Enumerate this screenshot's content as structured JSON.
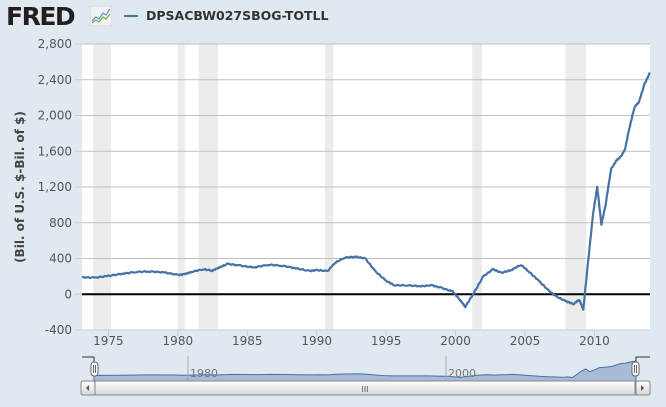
{
  "header": {
    "logo_text": "FRED",
    "logo_icon": "line-chart-icon",
    "series_id": "DPSACBW027SBOG-TOTLL",
    "series_color": "#4572a7"
  },
  "navigator": {
    "labels": [
      "1980",
      "2000"
    ],
    "scroll_grip": "III",
    "left_arrow": "scroll-left-arrow-icon",
    "right_arrow": "scroll-right-arrow-icon"
  },
  "chart_data": {
    "type": "line",
    "title": "DPSACBW027SBOG-TOTLL",
    "xlabel": "",
    "ylabel": "(Bil. of U.S. $-Bil. of $)",
    "ylim": [
      -400,
      2800
    ],
    "xlim": [
      1973.1,
      2014.0
    ],
    "yticks": [
      "-400",
      "0",
      "400",
      "800",
      "1,200",
      "1,600",
      "2,000",
      "2,400",
      "2,800"
    ],
    "xticks": [
      "1975",
      "1980",
      "1985",
      "1990",
      "1995",
      "2000",
      "2005",
      "2010"
    ],
    "grid": true,
    "legend_position": "top",
    "zero_line": true,
    "recessions": [
      [
        1973.9,
        1975.2
      ],
      [
        1980.0,
        1980.5
      ],
      [
        1981.5,
        1982.9
      ],
      [
        1990.6,
        1991.2
      ],
      [
        2001.2,
        2001.9
      ],
      [
        2007.9,
        2009.4
      ]
    ],
    "series": [
      {
        "name": "DPSACBW027SBOG-TOTLL",
        "color": "#4572a7",
        "x": [
          1973.1,
          1974.0,
          1975.0,
          1976.0,
          1977.0,
          1978.0,
          1979.0,
          1980.0,
          1980.5,
          1981.0,
          1981.8,
          1982.5,
          1983.0,
          1983.6,
          1984.5,
          1985.5,
          1986.5,
          1987.5,
          1988.5,
          1989.5,
          1990.0,
          1990.8,
          1991.3,
          1992.0,
          1992.8,
          1993.5,
          1994.2,
          1995.0,
          1995.6,
          1996.5,
          1997.5,
          1998.3,
          1999.0,
          1999.8,
          2000.3,
          2000.7,
          2001.3,
          2002.0,
          2002.7,
          2003.3,
          2004.0,
          2004.7,
          2005.3,
          2006.0,
          2006.7,
          2007.3,
          2008.0,
          2008.5,
          2008.9,
          2009.2,
          2009.5,
          2009.9,
          2010.2,
          2010.5,
          2010.8,
          2011.2,
          2011.6,
          2011.9,
          2012.2,
          2012.5,
          2012.9,
          2013.2,
          2013.6,
          2014.0
        ],
        "values": [
          190,
          185,
          205,
          230,
          250,
          255,
          245,
          215,
          225,
          250,
          280,
          265,
          300,
          340,
          320,
          300,
          330,
          320,
          290,
          260,
          270,
          260,
          350,
          410,
          420,
          400,
          260,
          150,
          100,
          100,
          90,
          100,
          70,
          30,
          -60,
          -140,
          10,
          200,
          280,
          240,
          270,
          330,
          250,
          150,
          40,
          -30,
          -80,
          -110,
          -60,
          -170,
          300,
          900,
          1200,
          780,
          1000,
          1400,
          1500,
          1540,
          1620,
          1850,
          2100,
          2150,
          2350,
          2480
        ]
      }
    ]
  }
}
